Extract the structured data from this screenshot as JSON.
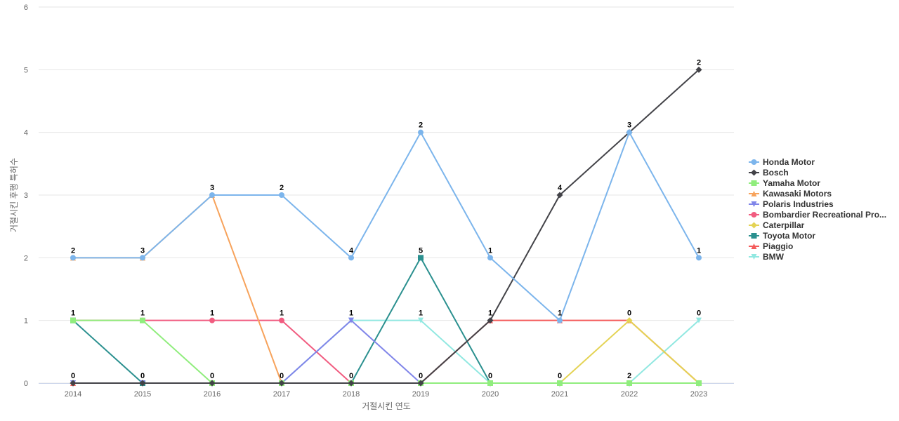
{
  "chart_data": {
    "type": "line",
    "xlabel": "거절시킨 연도",
    "ylabel": "거절시킨 후행 특허수",
    "ylim": [
      0,
      6
    ],
    "yticks": [
      "0",
      "1",
      "2",
      "3",
      "4",
      "5",
      "6"
    ],
    "categories": [
      "2014",
      "2015",
      "2016",
      "2017",
      "2018",
      "2019",
      "2020",
      "2021",
      "2022",
      "2023"
    ],
    "grid": true,
    "legend_position": "right",
    "series": [
      {
        "name": "Honda Motor",
        "color": "#7cb5ec",
        "marker": "circle",
        "values": [
          2,
          2,
          3,
          3,
          2,
          4,
          2,
          1,
          4,
          2
        ]
      },
      {
        "name": "Bosch",
        "color": "#434348",
        "marker": "diamond",
        "values": [
          0,
          0,
          0,
          0,
          0,
          0,
          1,
          3,
          4,
          5
        ]
      },
      {
        "name": "Yamaha Motor",
        "color": "#90ed7d",
        "marker": "square",
        "values": [
          1,
          1,
          0,
          0,
          0,
          0,
          0,
          0,
          0,
          0
        ]
      },
      {
        "name": "Kawasaki Motors",
        "color": "#f7a35c",
        "marker": "triangle",
        "values": [
          2,
          2,
          3,
          0,
          0,
          0,
          0,
          0,
          0,
          0
        ]
      },
      {
        "name": "Polaris Industries",
        "color": "#8085e9",
        "marker": "triangle-down",
        "values": [
          0,
          0,
          0,
          0,
          1,
          0,
          0,
          0,
          0,
          0
        ]
      },
      {
        "name": "Bombardier Recreational Pro...",
        "color": "#f15c80",
        "marker": "circle",
        "values": [
          1,
          1,
          1,
          1,
          0,
          0,
          0,
          0,
          0,
          0
        ]
      },
      {
        "name": "Caterpillar",
        "color": "#e4d354",
        "marker": "diamond",
        "values": [
          0,
          0,
          0,
          0,
          0,
          0,
          0,
          0,
          1,
          0
        ]
      },
      {
        "name": "Toyota Motor",
        "color": "#2b908f",
        "marker": "square",
        "values": [
          1,
          0,
          0,
          0,
          0,
          2,
          0,
          0,
          0,
          0
        ]
      },
      {
        "name": "Piaggio",
        "color": "#f45b5b",
        "marker": "triangle",
        "values": [
          0,
          0,
          0,
          0,
          0,
          0,
          1,
          1,
          1,
          0
        ]
      },
      {
        "name": "BMW",
        "color": "#91e8e1",
        "marker": "triangle-down",
        "values": [
          0,
          0,
          0,
          0,
          1,
          1,
          0,
          0,
          0,
          1
        ]
      }
    ],
    "data_labels": [
      2,
      2,
      3,
      3,
      2,
      4,
      2,
      3,
      4,
      5,
      1,
      1,
      1,
      1,
      1,
      1,
      1,
      1,
      1,
      1,
      0,
      0,
      0,
      0,
      0,
      0,
      0,
      0,
      0,
      0,
      2
    ]
  }
}
